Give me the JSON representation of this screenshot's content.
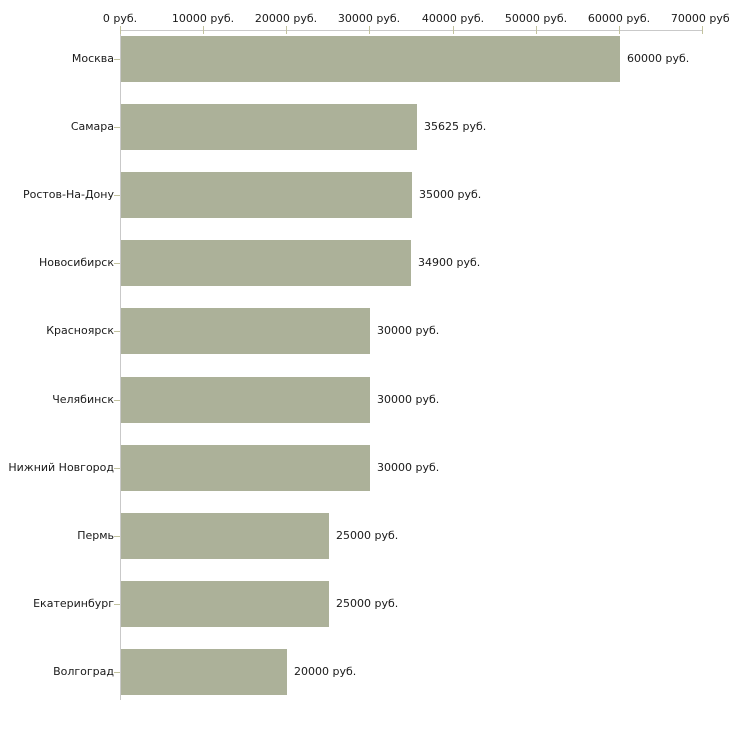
{
  "chart_data": {
    "type": "bar",
    "orientation": "horizontal",
    "title": "",
    "xlabel": "",
    "ylabel": "",
    "categories": [
      "Москва",
      "Самара",
      "Ростов-На-Дону",
      "Новосибирск",
      "Красноярск",
      "Челябинск",
      "Нижний Новгород",
      "Пермь",
      "Екатеринбург",
      "Волгоград"
    ],
    "values": [
      60000,
      35625,
      35000,
      34900,
      30000,
      30000,
      30000,
      25000,
      25000,
      20000
    ],
    "value_labels": [
      "60000 руб.",
      "35625 руб.",
      "35000 руб.",
      "34900 руб.",
      "30000 руб.",
      "30000 руб.",
      "30000 руб.",
      "25000 руб.",
      "25000 руб.",
      "20000 руб."
    ],
    "x_tick_values": [
      0,
      10000,
      20000,
      30000,
      40000,
      50000,
      60000,
      70000
    ],
    "x_tick_labels": [
      "0 руб.",
      "10000 руб.",
      "20000 руб.",
      "30000 руб.",
      "40000 руб.",
      "50000 руб.",
      "60000 руб.",
      "70000 руб."
    ],
    "xlim": [
      0,
      70000
    ],
    "grid": false,
    "legend": "none",
    "colors": {
      "bar": "#acb199",
      "axis_line": "#c9c9c9",
      "tick": "#c2c29e",
      "text": "#1a1a1a",
      "background": "#ffffff"
    }
  }
}
